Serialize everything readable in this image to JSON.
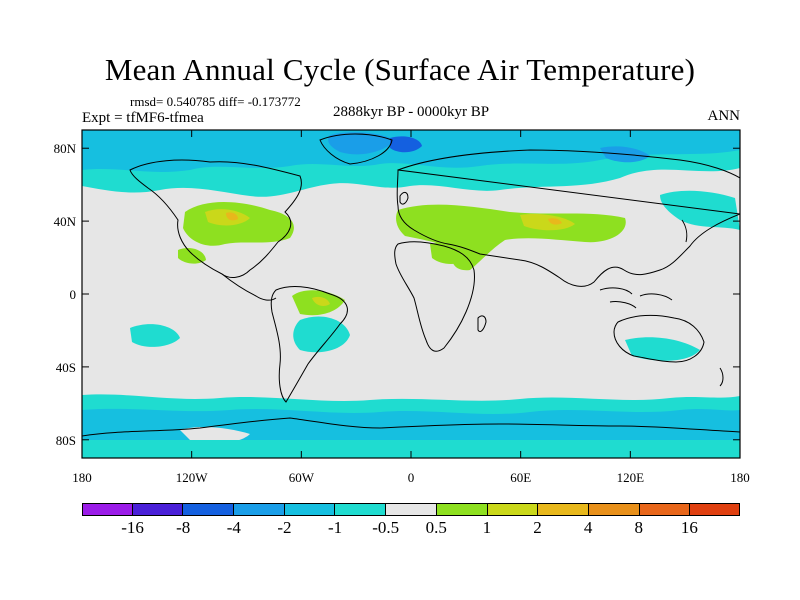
{
  "title": "Mean Annual Cycle (Surface Air Temperature)",
  "stats": "rmsd= 0.540785 diff= -0.173772",
  "experiment": "Expt = tfMF6-tfmea",
  "period": "2888kyr BP - 0000kyr BP",
  "season": "ANN",
  "axes": {
    "x_ticks": [
      "180",
      "120W",
      "60W",
      "0",
      "60E",
      "120E",
      "180"
    ],
    "y_ticks": [
      "80N",
      "40N",
      "0",
      "40S",
      "80S"
    ]
  },
  "colorbar": {
    "colors": [
      "#9b1ce8",
      "#4a20d8",
      "#1460e0",
      "#1a9ee8",
      "#16bfe0",
      "#1fdcd0",
      "#e6e6e6",
      "#8ee020",
      "#cad81a",
      "#e8b81c",
      "#e8901a",
      "#e8661a",
      "#e04010"
    ],
    "labels": [
      "-16",
      "-8",
      "-4",
      "-2",
      "-1",
      "-0.5",
      "0.5",
      "1",
      "2",
      "4",
      "8",
      "16"
    ]
  },
  "map_colors": {
    "neutral": "#e6e6e6",
    "cool_light": "#1fdcd0",
    "cool_mid": "#16bfe0",
    "cool": "#1a9ee8",
    "cool_strong": "#1460e0",
    "warm_light": "#8ee020",
    "warm_mid": "#cad81a",
    "warm": "#e8b81c",
    "coast": "#000000"
  }
}
